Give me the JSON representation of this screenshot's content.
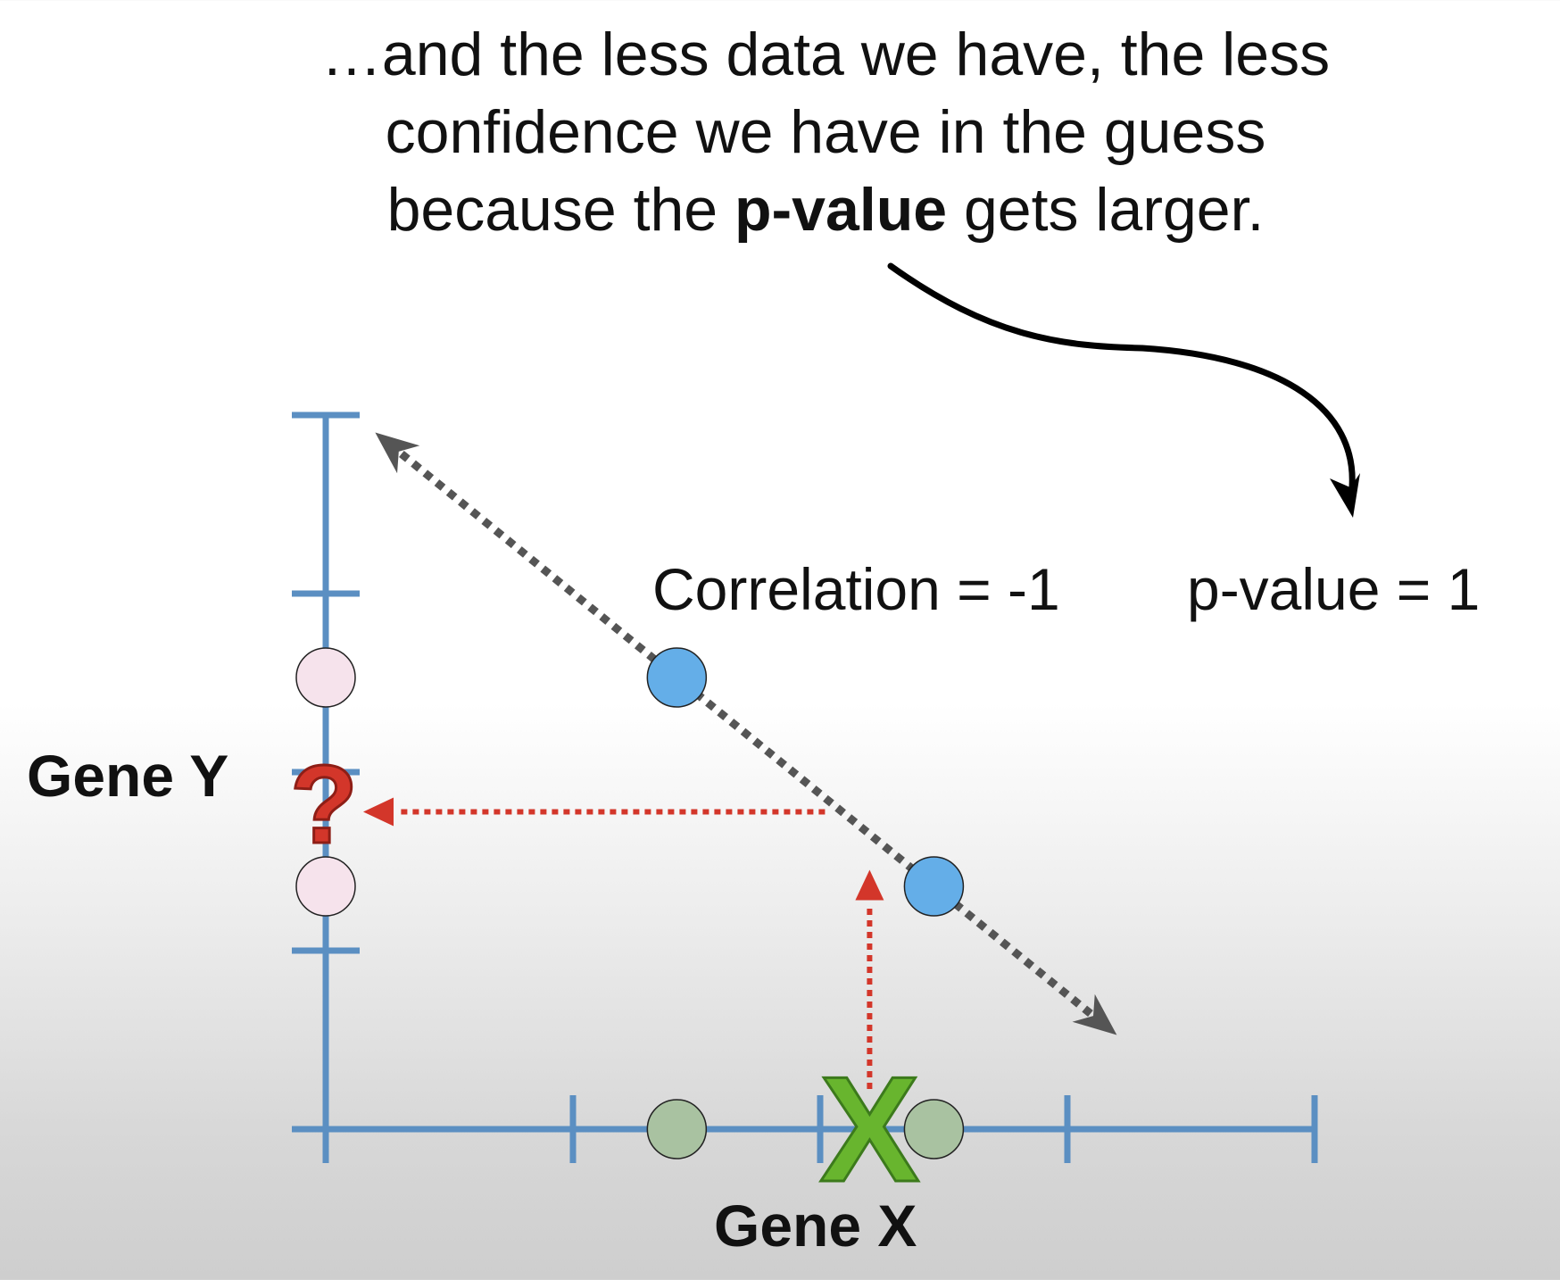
{
  "caption": {
    "line1": "…and the less data we have, the less",
    "line2": "confidence we have in the guess",
    "line3_pre": "because the ",
    "line3_bold": "p-value",
    "line3_post": " gets larger."
  },
  "annotations": {
    "correlation": "Correlation = -1",
    "pvalue": "p-value = 1",
    "question_mark": "?",
    "x_marker": "X"
  },
  "axes": {
    "xlabel": "Gene X",
    "ylabel": "Gene Y"
  },
  "colors": {
    "axis": "#5b8fc2",
    "data_point": "#64aee8",
    "x_projection": "#a9c2a1",
    "y_projection": "#f6e3ec",
    "guide_arrow": "#d3362a",
    "trend_line": "#555555",
    "x_marker": "#68b52e"
  },
  "chart_data": {
    "type": "scatter",
    "xlabel": "Gene X",
    "ylabel": "Gene Y",
    "points": [
      {
        "x": 1.42,
        "y": 2.53
      },
      {
        "x": 2.46,
        "y": 1.36
      }
    ],
    "new_x": 2.2,
    "correlation": -1,
    "p_value": 1,
    "xticks": [
      0,
      1,
      2,
      3,
      4
    ],
    "yticks": [
      0,
      1,
      2,
      3,
      4
    ]
  }
}
